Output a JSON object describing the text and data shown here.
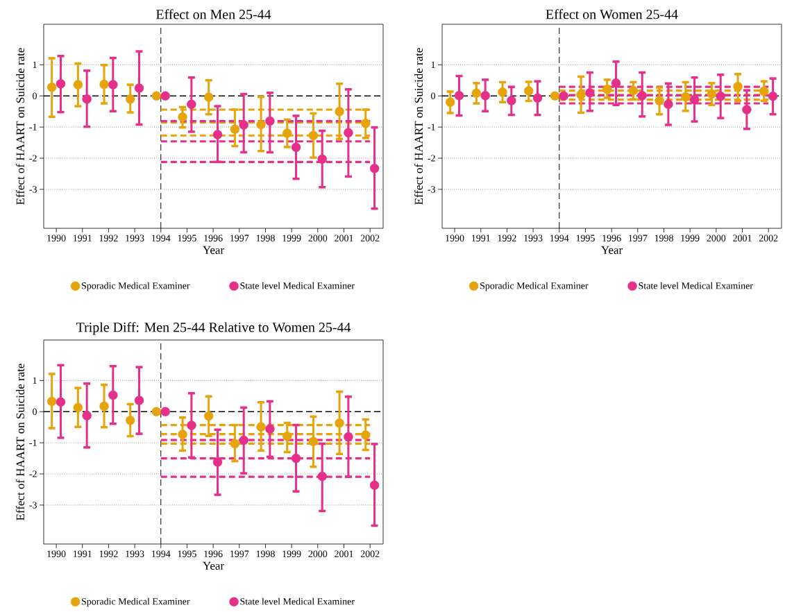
{
  "chart_data": [
    {
      "type": "scatter",
      "title": "Effect on Men 25-44",
      "xlabel": "Year",
      "ylabel": "Effect of HAART on Suicide rate",
      "xlim": [
        1989.52,
        2002.5
      ],
      "ylim": [
        -4.25,
        2.3
      ],
      "xticks": [
        1990,
        1991,
        1992,
        1993,
        1994,
        1995,
        1996,
        1997,
        1998,
        1999,
        2000,
        2001,
        2002
      ],
      "yticks": [
        -3,
        -2,
        -1,
        0,
        1
      ],
      "grid": "y",
      "legend": "bottom",
      "marker": "circle",
      "ref_lines": [
        {
          "axis": "y",
          "value": 0,
          "color": "#000000",
          "line_style": "dashed"
        },
        {
          "axis": "x",
          "value": 1994,
          "color": "#000000",
          "line_style": "dashed"
        }
      ],
      "series": [
        {
          "name": "Sporadic Medical Examiner",
          "color": "#e6a40c",
          "x": [
            1989.83,
            1990.83,
            1991.83,
            1992.83,
            1993.83,
            1994.83,
            1995.83,
            1996.83,
            1997.83,
            1998.83,
            1999.83,
            2000.83,
            2001.83
          ],
          "values": [
            0.28,
            0.36,
            0.37,
            -0.1,
            0,
            -0.68,
            -0.04,
            -1.07,
            -0.92,
            -1.2,
            -1.27,
            -0.5,
            -0.88
          ],
          "errors": [
            [
              -0.67,
              1.21
            ],
            [
              -0.33,
              1.04
            ],
            [
              -0.24,
              0.99
            ],
            [
              -0.53,
              0.36
            ],
            null,
            [
              -1.01,
              -0.36
            ],
            [
              -0.59,
              0.5
            ],
            [
              -1.61,
              -0.44
            ],
            [
              -1.77,
              -0.03
            ],
            [
              -1.64,
              -0.76
            ],
            [
              -1.98,
              -0.56
            ],
            [
              -1.38,
              0.39
            ],
            [
              -1.35,
              -0.44
            ]
          ]
        },
        {
          "name": "State level Medical Examiner",
          "color": "#e5308a",
          "x": [
            1990.17,
            1991.17,
            1992.17,
            1993.17,
            1994.17,
            1995.17,
            1996.17,
            1997.17,
            1998.17,
            1999.17,
            2000.17,
            2001.17,
            2002.17
          ],
          "values": [
            0.39,
            -0.1,
            0.36,
            0.25,
            0,
            -0.27,
            -1.24,
            -0.93,
            -0.81,
            -1.65,
            -2.03,
            -1.18,
            -2.33
          ],
          "errors": [
            [
              -0.52,
              1.28
            ],
            [
              -0.99,
              0.81
            ],
            [
              -0.49,
              1.22
            ],
            [
              -0.92,
              1.43
            ],
            null,
            [
              -1.15,
              0.59
            ],
            [
              -2.12,
              -0.33
            ],
            [
              -1.81,
              0.06
            ],
            [
              -1.81,
              0.1
            ],
            [
              -2.66,
              -0.64
            ],
            [
              -2.93,
              -1.12
            ],
            [
              -2.59,
              0.21
            ],
            [
              -3.62,
              -1.01
            ]
          ]
        },
        {
          "type": "line",
          "marker": "none",
          "color": "#e6a40c",
          "line_style": "dashed",
          "x": [
            1994,
            2002
          ],
          "values": [
            -0.44,
            -0.44
          ]
        },
        {
          "type": "line",
          "marker": "none",
          "color": "#e6a40c",
          "line_style": "dashed",
          "x": [
            1994,
            2002
          ],
          "values": [
            -0.85,
            -0.85
          ]
        },
        {
          "type": "line",
          "marker": "none",
          "color": "#e6a40c",
          "line_style": "dashed",
          "x": [
            1994,
            2002
          ],
          "values": [
            -1.27,
            -1.27
          ]
        },
        {
          "type": "line",
          "marker": "none",
          "color": "#e5308a",
          "line_style": "dashed",
          "x": [
            1994,
            2002
          ],
          "values": [
            -0.81,
            -0.81
          ]
        },
        {
          "type": "line",
          "marker": "none",
          "color": "#e5308a",
          "line_style": "dashed",
          "x": [
            1994,
            2002
          ],
          "values": [
            -1.46,
            -1.46
          ]
        },
        {
          "type": "line",
          "marker": "none",
          "color": "#e5308a",
          "line_style": "dashed",
          "x": [
            1994,
            2002
          ],
          "values": [
            -2.12,
            -2.12
          ]
        }
      ]
    },
    {
      "type": "scatter",
      "title": "Effect on Women 25-44",
      "xlabel": "Year",
      "ylabel": "Effect of HAART on Suicide rate",
      "xlim": [
        1989.52,
        2002.5
      ],
      "ylim": [
        -4.25,
        2.3
      ],
      "xticks": [
        1990,
        1991,
        1992,
        1993,
        1994,
        1995,
        1996,
        1997,
        1998,
        1999,
        2000,
        2001,
        2002
      ],
      "yticks": [
        -3,
        -2,
        -1,
        0,
        1
      ],
      "grid": "y",
      "legend": "bottom",
      "marker": "circle",
      "ref_lines": [
        {
          "axis": "y",
          "value": 0,
          "color": "#000000",
          "line_style": "dashed"
        },
        {
          "axis": "x",
          "value": 1994,
          "color": "#000000",
          "line_style": "dashed"
        }
      ],
      "series": [
        {
          "name": "Sporadic Medical Examiner",
          "color": "#e6a40c",
          "x": [
            1989.83,
            1990.83,
            1991.83,
            1992.83,
            1993.83,
            1994.83,
            1995.83,
            1996.83,
            1997.83,
            1998.83,
            1999.83,
            2000.83,
            2001.83
          ],
          "values": [
            -0.2,
            0.09,
            0.12,
            0.16,
            0,
            0.04,
            0.21,
            0.17,
            -0.15,
            -0.03,
            0.06,
            0.3,
            0.15
          ],
          "errors": [
            [
              -0.55,
              0.14
            ],
            [
              -0.24,
              0.41
            ],
            [
              -0.2,
              0.44
            ],
            [
              -0.16,
              0.45
            ],
            null,
            [
              -0.54,
              0.62
            ],
            [
              -0.06,
              0.52
            ],
            [
              -0.11,
              0.44
            ],
            [
              -0.59,
              0.27
            ],
            [
              -0.48,
              0.44
            ],
            [
              -0.29,
              0.41
            ],
            [
              -0.16,
              0.7
            ],
            [
              -0.16,
              0.47
            ]
          ]
        },
        {
          "name": "State level Medical Examiner",
          "color": "#e5308a",
          "x": [
            1990.17,
            1991.17,
            1992.17,
            1993.17,
            1994.17,
            1995.17,
            1996.17,
            1997.17,
            1998.17,
            1999.17,
            2000.17,
            2001.17,
            2002.17
          ],
          "values": [
            0.01,
            0.01,
            -0.15,
            -0.07,
            0,
            0.1,
            0.41,
            0.01,
            -0.27,
            -0.12,
            -0.01,
            -0.44,
            -0.01
          ],
          "errors": [
            [
              -0.63,
              0.64
            ],
            [
              -0.49,
              0.52
            ],
            [
              -0.61,
              0.29
            ],
            [
              -0.61,
              0.47
            ],
            null,
            [
              -0.48,
              0.75
            ],
            [
              -0.29,
              1.1
            ],
            [
              -0.66,
              0.75
            ],
            [
              -0.93,
              0.4
            ],
            [
              -0.82,
              0.59
            ],
            [
              -0.71,
              0.68
            ],
            [
              -1.06,
              0.18
            ],
            [
              -0.59,
              0.56
            ]
          ]
        },
        {
          "type": "line",
          "marker": "none",
          "color": "#e6a40c",
          "line_style": "dashed",
          "x": [
            1994,
            2002
          ],
          "values": [
            0.17,
            0.17
          ]
        },
        {
          "type": "line",
          "marker": "none",
          "color": "#e6a40c",
          "line_style": "dashed",
          "x": [
            1994,
            2002
          ],
          "values": [
            0.03,
            0.03
          ]
        },
        {
          "type": "line",
          "marker": "none",
          "color": "#e6a40c",
          "line_style": "dashed",
          "x": [
            1994,
            2002
          ],
          "values": [
            -0.12,
            -0.12
          ]
        },
        {
          "type": "line",
          "marker": "none",
          "color": "#e5308a",
          "line_style": "dashed",
          "x": [
            1994,
            2002
          ],
          "values": [
            0.29,
            0.29
          ]
        },
        {
          "type": "line",
          "marker": "none",
          "color": "#e5308a",
          "line_style": "dashed",
          "x": [
            1994,
            2002
          ],
          "values": [
            0.02,
            0.02
          ]
        },
        {
          "type": "line",
          "marker": "none",
          "color": "#e5308a",
          "line_style": "dashed",
          "x": [
            1994,
            2002
          ],
          "values": [
            -0.24,
            -0.24
          ]
        }
      ]
    },
    {
      "type": "scatter",
      "title": "Triple Diff: Men 25-44 Relative to Women 25-44",
      "xlabel": "Year",
      "ylabel": "Effect of HAART on Suicide rate",
      "xlim": [
        1989.52,
        2002.5
      ],
      "ylim": [
        -4.25,
        2.3
      ],
      "xticks": [
        1990,
        1991,
        1992,
        1993,
        1994,
        1995,
        1996,
        1997,
        1998,
        1999,
        2000,
        2001,
        2002
      ],
      "yticks": [
        -3,
        -2,
        -1,
        0,
        1
      ],
      "grid": "y",
      "legend": "bottom",
      "marker": "circle",
      "ref_lines": [
        {
          "axis": "y",
          "value": 0,
          "color": "#000000",
          "line_style": "dashed"
        },
        {
          "axis": "x",
          "value": 1994,
          "color": "#000000",
          "line_style": "dashed"
        }
      ],
      "series": [
        {
          "name": "Sporadic Medical Examiner",
          "color": "#e6a40c",
          "x": [
            1989.83,
            1990.83,
            1991.83,
            1992.83,
            1993.83,
            1994.83,
            1995.83,
            1996.83,
            1997.83,
            1998.83,
            1999.83,
            2000.83,
            2001.83
          ],
          "values": [
            0.33,
            0.13,
            0.17,
            -0.28,
            0,
            -0.73,
            -0.14,
            -1.03,
            -0.49,
            -0.79,
            -0.96,
            -0.37,
            -0.75
          ],
          "errors": [
            [
              -0.53,
              1.21
            ],
            [
              -0.49,
              0.76
            ],
            [
              -0.5,
              0.86
            ],
            [
              -0.79,
              0.24
            ],
            null,
            [
              -1.25,
              -0.19
            ],
            [
              -0.78,
              0.49
            ],
            [
              -1.59,
              -0.43
            ],
            [
              -1.25,
              0.3
            ],
            [
              -1.3,
              -0.36
            ],
            [
              -1.77,
              -0.16
            ],
            [
              -1.36,
              0.64
            ],
            [
              -1.23,
              -0.25
            ]
          ]
        },
        {
          "name": "State level Medical Examiner",
          "color": "#e5308a",
          "x": [
            1990.17,
            1991.17,
            1992.17,
            1993.17,
            1994.17,
            1995.17,
            1996.17,
            1997.17,
            1998.17,
            1999.17,
            2000.17,
            2001.17,
            2002.17
          ],
          "values": [
            0.31,
            -0.13,
            0.53,
            0.36,
            0,
            -0.44,
            -1.62,
            -0.92,
            -0.56,
            -1.5,
            -2.08,
            -0.81,
            -2.36
          ],
          "errors": [
            [
              -0.84,
              1.49
            ],
            [
              -1.15,
              0.9
            ],
            [
              -0.39,
              1.46
            ],
            [
              -0.71,
              1.43
            ],
            null,
            [
              -1.47,
              0.59
            ],
            [
              -2.67,
              -0.58
            ],
            [
              -1.98,
              0.13
            ],
            [
              -1.45,
              0.33
            ],
            [
              -2.56,
              -0.43
            ],
            [
              -3.19,
              -1.03
            ],
            [
              -2.09,
              0.48
            ],
            [
              -3.66,
              -1.04
            ]
          ]
        },
        {
          "type": "line",
          "marker": "none",
          "color": "#e6a40c",
          "line_style": "dashed",
          "x": [
            1994,
            2002
          ],
          "values": [
            -0.43,
            -0.43
          ]
        },
        {
          "type": "line",
          "marker": "none",
          "color": "#e6a40c",
          "line_style": "dashed",
          "x": [
            1994,
            2002
          ],
          "values": [
            -0.72,
            -0.72
          ]
        },
        {
          "type": "line",
          "marker": "none",
          "color": "#e6a40c",
          "line_style": "dashed",
          "x": [
            1994,
            2002
          ],
          "values": [
            -1.03,
            -1.03
          ]
        },
        {
          "type": "line",
          "marker": "none",
          "color": "#e5308a",
          "line_style": "dashed",
          "x": [
            1994,
            2002
          ],
          "values": [
            -0.91,
            -0.91
          ]
        },
        {
          "type": "line",
          "marker": "none",
          "color": "#e5308a",
          "line_style": "dashed",
          "x": [
            1994,
            2002
          ],
          "values": [
            -1.5,
            -1.5
          ]
        },
        {
          "type": "line",
          "marker": "none",
          "color": "#e5308a",
          "line_style": "dashed",
          "x": [
            1994,
            2002
          ],
          "values": [
            -2.09,
            -2.09
          ]
        }
      ]
    }
  ]
}
